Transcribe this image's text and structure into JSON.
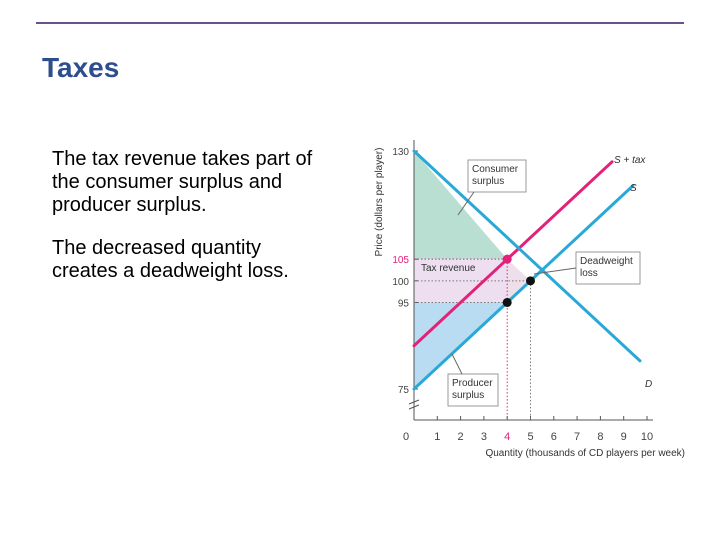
{
  "slide": {
    "title": "Taxes",
    "bullets": [
      "The tax revenue takes part of the consumer surplus and producer surplus.",
      "The decreased quantity creates a deadweight loss."
    ]
  },
  "colors": {
    "title": "#2e4d8c",
    "rule": "#6f4e8c",
    "supply": "#2aa9d8",
    "demand": "#2aa9d8",
    "supply_plus_tax": "#e3217b",
    "consumer_surplus": "#b9ded2",
    "producer_surplus": "#b9dcf2",
    "tax_revenue": "#eddff0",
    "deadweight_loss": "#eedfea"
  },
  "chart_data": {
    "type": "line",
    "xlabel": "Quantity (thousands of CD players per week)",
    "ylabel": "Price (dollars per player)",
    "xlim": [
      0,
      10
    ],
    "ylim": [
      75,
      130
    ],
    "x_ticks": [
      "0",
      "1",
      "2",
      "3",
      "4",
      "5",
      "6",
      "7",
      "8",
      "9",
      "10"
    ],
    "y_ticks": [
      {
        "value": 130,
        "label": "130",
        "highlight": false
      },
      {
        "value": 105,
        "label": "105",
        "highlight": true
      },
      {
        "value": 100,
        "label": "100",
        "highlight": false
      },
      {
        "value": 95,
        "label": "95",
        "highlight": false
      },
      {
        "value": 75,
        "label": "75",
        "highlight": false
      }
    ],
    "highlight_x_tick": 4,
    "series": [
      {
        "name": "S + tax",
        "key": "supply_plus_tax",
        "x": [
          0,
          8.5
        ],
        "y": [
          85,
          127.5
        ]
      },
      {
        "name": "S",
        "key": "supply",
        "x": [
          0,
          9.4
        ],
        "y": [
          75,
          122
        ]
      },
      {
        "name": "D",
        "key": "demand",
        "x": [
          0,
          9.7
        ],
        "y": [
          130,
          81.5
        ]
      }
    ],
    "points": [
      {
        "x": 4,
        "y": 105,
        "key": "supply_plus_tax"
      },
      {
        "x": 5,
        "y": 100,
        "key": "dark"
      },
      {
        "x": 4,
        "y": 95,
        "key": "dark"
      }
    ],
    "regions": {
      "consumer_surplus": [
        [
          0,
          130
        ],
        [
          4,
          105
        ],
        [
          0,
          105
        ]
      ],
      "tax_revenue": [
        [
          0,
          105
        ],
        [
          4,
          105
        ],
        [
          4,
          95
        ],
        [
          0,
          95
        ]
      ],
      "deadweight_loss": [
        [
          4,
          105
        ],
        [
          5,
          100
        ],
        [
          4,
          95
        ]
      ],
      "producer_surplus": [
        [
          0,
          95
        ],
        [
          4,
          95
        ],
        [
          0,
          75
        ]
      ]
    },
    "annotations": {
      "consumer_surplus": [
        "Consumer",
        "surplus"
      ],
      "tax_revenue": [
        "Tax revenue"
      ],
      "deadweight_loss": [
        "Deadweight",
        "loss"
      ],
      "producer_surplus": [
        "Producer",
        "surplus"
      ]
    }
  }
}
